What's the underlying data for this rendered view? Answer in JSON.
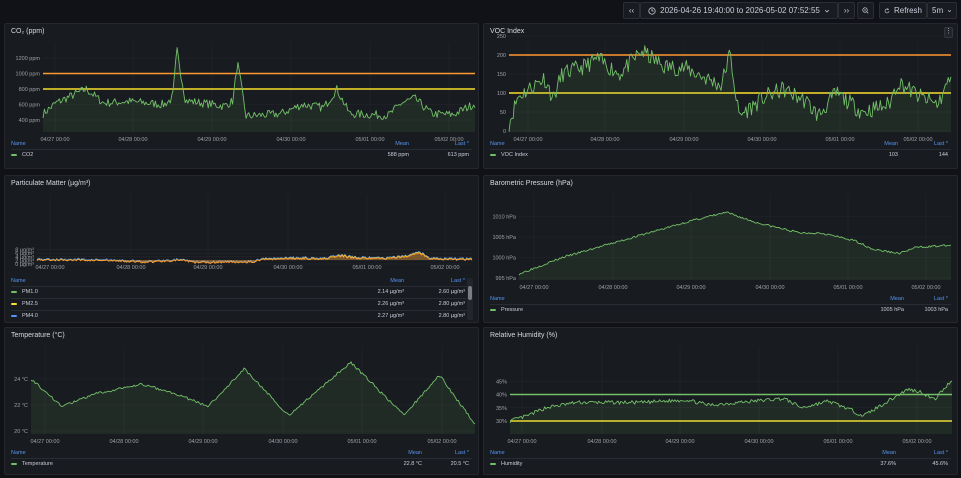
{
  "toolbar": {
    "back_label": "‹‹",
    "time_range": "2026-04-26 19:40:00 to 2026-05-02 07:52:55",
    "forward_label": "››",
    "refresh_label": "Refresh",
    "refresh_interval": "5m",
    "icons": [
      "clock-icon",
      "chevron-down-icon",
      "zoom-out-icon",
      "refresh-icon"
    ]
  },
  "x_ticks": [
    "04/27 00:00",
    "04/28 00:00",
    "04/29 00:00",
    "04/30 00:00",
    "05/01 00:00",
    "05/02 00:00"
  ],
  "legend_headers": {
    "name": "Name",
    "mean": "Mean",
    "last": "Last *"
  },
  "colors": {
    "green": "#73bf69",
    "yellow": "#fade2a",
    "orange": "#ff9830",
    "blue": "#5794f2",
    "threshold_orange": "#ff9830"
  },
  "panels": {
    "co2": {
      "title": "CO₂ (ppm)",
      "y_ticks": [
        "1200 ppm",
        "1000 ppm",
        "800 ppm",
        "600 ppm",
        "400 ppm"
      ],
      "series": [
        {
          "name": "CO2",
          "mean": "588 ppm",
          "last": "613 ppm",
          "color": "#73bf69"
        }
      ],
      "thresholds": [
        {
          "value": 1000,
          "color": "#ff9830"
        },
        {
          "value": 800,
          "color": "#fade2a"
        }
      ]
    },
    "voc": {
      "title": "VOC Index",
      "y_ticks": [
        "250",
        "200",
        "150",
        "100",
        "50",
        "0"
      ],
      "series": [
        {
          "name": "VOC Index",
          "mean": "103",
          "last": "144",
          "color": "#73bf69"
        }
      ],
      "thresholds": [
        {
          "value": 200,
          "color": "#ff9830"
        },
        {
          "value": 100,
          "color": "#fade2a"
        }
      ]
    },
    "pm": {
      "title": "Particulate Matter (µg/m³)",
      "y_ticks": [
        "8 µg/m³",
        "6 µg/m³",
        "4 µg/m³",
        "2 µg/m³",
        "0 µg/m³"
      ],
      "series": [
        {
          "name": "PM1.0",
          "mean": "2.14 µg/m³",
          "last": "2.60 µg/m³",
          "color": "#73bf69"
        },
        {
          "name": "PM2.5",
          "mean": "2.26 µg/m³",
          "last": "2.80 µg/m³",
          "color": "#fade2a"
        },
        {
          "name": "PM4.0",
          "mean": "2.27 µg/m³",
          "last": "2.80 µg/m³",
          "color": "#5794f2"
        }
      ]
    },
    "pressure": {
      "title": "Barometric Pressure (hPa)",
      "y_ticks": [
        "1010 hPa",
        "1005 hPa",
        "1000 hPa",
        "995 hPa"
      ],
      "series": [
        {
          "name": "Pressure",
          "mean": "1005 hPa",
          "last": "1003 hPa",
          "color": "#73bf69"
        }
      ]
    },
    "temperature": {
      "title": "Temperature (°C)",
      "y_ticks": [
        "24 °C",
        "22 °C",
        "20 °C"
      ],
      "series": [
        {
          "name": "Temperature",
          "mean": "22.8 °C",
          "last": "20.5 °C",
          "color": "#73bf69"
        }
      ]
    },
    "humidity": {
      "title": "Relative Humidity (%)",
      "y_ticks": [
        "45%",
        "40%",
        "35%",
        "30%"
      ],
      "series": [
        {
          "name": "Humidity",
          "mean": "37.6%",
          "last": "45.6%",
          "color": "#73bf69"
        }
      ],
      "thresholds": [
        {
          "value": 40,
          "color": "#73bf69"
        },
        {
          "value": 30,
          "color": "#fade2a"
        }
      ]
    }
  }
}
